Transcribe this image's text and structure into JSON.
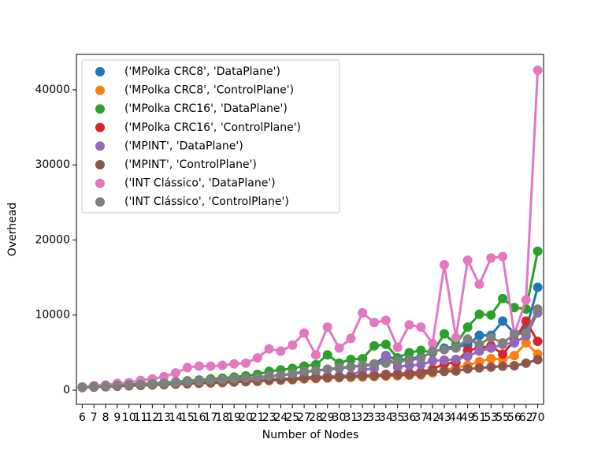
{
  "chart_data": {
    "type": "line",
    "xlabel": "Number of Nodes",
    "ylabel": "Overhead",
    "categories": [
      "6",
      "7",
      "8",
      "9",
      "10",
      "11",
      "12",
      "13",
      "14",
      "15",
      "16",
      "17",
      "18",
      "19",
      "20",
      "21",
      "23",
      "24",
      "25",
      "27",
      "28",
      "29",
      "30",
      "31",
      "32",
      "33",
      "34",
      "35",
      "36",
      "37",
      "42",
      "43",
      "44",
      "49",
      "51",
      "53",
      "55",
      "56",
      "62",
      "70"
    ],
    "ylim": [
      -1890,
      44720
    ],
    "yticks": [
      0,
      10000,
      20000,
      30000,
      40000
    ],
    "legend": "upper left",
    "series": [
      {
        "name": "('MPolka CRC8', 'DataPlane')",
        "color": "#1f77b4",
        "values": [
          400,
          470,
          540,
          600,
          680,
          740,
          820,
          880,
          960,
          1050,
          1150,
          1250,
          1350,
          1450,
          1550,
          1650,
          1850,
          2000,
          2150,
          2400,
          2600,
          2750,
          2900,
          3100,
          3250,
          3400,
          4600,
          4000,
          4200,
          4400,
          5000,
          5600,
          5800,
          6000,
          7300,
          7300,
          9200,
          7600,
          8000,
          13700
        ]
      },
      {
        "name": "('MPolka CRC8', 'ControlPlane')",
        "color": "#ff7f0e",
        "values": [
          380,
          430,
          480,
          530,
          590,
          640,
          690,
          740,
          800,
          850,
          900,
          950,
          1000,
          1060,
          1110,
          1160,
          1270,
          1320,
          1380,
          1490,
          1540,
          1600,
          1650,
          1700,
          1760,
          1810,
          1870,
          1920,
          1980,
          2030,
          2300,
          2700,
          3000,
          3300,
          3800,
          4200,
          4100,
          4600,
          6300,
          4800
        ]
      },
      {
        "name": "('MPolka CRC16', 'DataPlane')",
        "color": "#2ca02c",
        "values": [
          420,
          500,
          580,
          660,
          750,
          830,
          920,
          1000,
          1100,
          1250,
          1350,
          1500,
          1600,
          1750,
          1900,
          2100,
          2500,
          2700,
          2900,
          3200,
          3400,
          4700,
          3600,
          4100,
          4200,
          5900,
          6100,
          4300,
          5000,
          5300,
          5000,
          7500,
          6100,
          8400,
          10100,
          10000,
          12200,
          11000,
          10800,
          18500
        ]
      },
      {
        "name": "('MPolka CRC16', 'ControlPlane')",
        "color": "#d62728",
        "values": [
          380,
          440,
          500,
          560,
          620,
          680,
          740,
          800,
          860,
          920,
          980,
          1040,
          1100,
          1160,
          1220,
          1280,
          1400,
          1460,
          1520,
          1640,
          1700,
          1760,
          1820,
          1880,
          1940,
          2000,
          2100,
          2150,
          2300,
          2400,
          2800,
          3500,
          3700,
          5300,
          5600,
          5900,
          4800,
          6600,
          9200,
          6500
        ]
      },
      {
        "name": "('MPINT', 'DataPlane')",
        "color": "#9467bd",
        "values": [
          380,
          440,
          500,
          560,
          620,
          690,
          750,
          810,
          870,
          930,
          1000,
          1060,
          1120,
          1180,
          1250,
          1310,
          1440,
          1500,
          1560,
          1700,
          1760,
          1820,
          1890,
          1950,
          2700,
          2900,
          4500,
          3100,
          3300,
          3400,
          3900,
          4000,
          4100,
          4500,
          5200,
          5600,
          6100,
          6300,
          7200,
          10300
        ]
      },
      {
        "name": "('MPINT', 'ControlPlane')",
        "color": "#8c564b",
        "values": [
          350,
          410,
          460,
          520,
          580,
          640,
          700,
          750,
          810,
          870,
          930,
          990,
          1040,
          1100,
          1160,
          1220,
          1330,
          1390,
          1450,
          1570,
          1620,
          1680,
          1740,
          1800,
          1860,
          1910,
          1970,
          2030,
          2090,
          2150,
          2440,
          2490,
          2550,
          2840,
          2960,
          3070,
          3190,
          3250,
          3600,
          4060
        ]
      },
      {
        "name": "('INT Clássico', 'DataPlane')",
        "color": "#e377c2",
        "values": [
          400,
          600,
          700,
          900,
          1000,
          1300,
          1500,
          1800,
          2300,
          3000,
          3200,
          3200,
          3300,
          3500,
          3600,
          4300,
          5500,
          5200,
          6000,
          7600,
          4700,
          8400,
          5600,
          6900,
          10300,
          9000,
          9300,
          5700,
          8700,
          8400,
          6200,
          16700,
          7000,
          17300,
          14100,
          17600,
          17800,
          7500,
          12000,
          42600
        ]
      },
      {
        "name": "('INT Clássico', 'ControlPlane')",
        "color": "#7f7f7f",
        "values": [
          400,
          480,
          550,
          620,
          700,
          780,
          850,
          930,
          1000,
          1100,
          1200,
          1300,
          1400,
          1500,
          1600,
          1700,
          1900,
          2000,
          2200,
          2500,
          2600,
          2800,
          3000,
          3100,
          3300,
          3500,
          3600,
          3800,
          4000,
          4200,
          5200,
          5400,
          5600,
          6800,
          6100,
          7000,
          6300,
          7400,
          7600,
          10800
        ]
      }
    ]
  }
}
